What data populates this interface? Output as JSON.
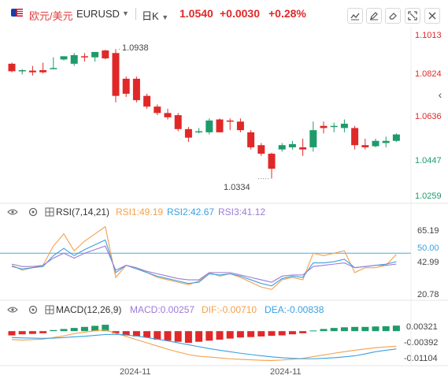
{
  "header": {
    "symbol_cn": "欧元/美元",
    "symbol_en": "EURUSD",
    "period": "日K",
    "price": "1.0540",
    "change": "+0.0030",
    "change_pct": "+0.28%",
    "icons": [
      "line-tool-icon",
      "draw-icon",
      "erase-icon",
      "fullscreen-icon",
      "close-icon"
    ]
  },
  "colors": {
    "up": "#e02828",
    "down": "#1e9b6a",
    "rsi1": "#f5a04a",
    "rsi2": "#3aa0e0",
    "rsi3": "#9b7bd6",
    "dif": "#f5a04a",
    "dea": "#3aa0e0"
  },
  "chart_data": [
    {
      "type": "candlestick",
      "ylim": [
        1.0259,
        1.1013
      ],
      "y_ticks": [
        "1.1013",
        "1.0824",
        "1.0636",
        "1.0447",
        "1.0259"
      ],
      "annotations": {
        "high": "1.0938",
        "low": "1.0334"
      },
      "candles": [
        [
          1.087,
          1.0875,
          1.0835,
          1.083
        ],
        [
          1.0838,
          1.0845,
          1.084,
          1.082
        ],
        [
          1.0838,
          1.086,
          1.083,
          1.0815
        ],
        [
          1.084,
          1.0875,
          1.083,
          1.0825
        ],
        [
          1.085,
          1.09,
          1.085,
          1.0845
        ],
        [
          1.089,
          1.0905,
          1.0905,
          1.0885
        ],
        [
          1.087,
          1.092,
          1.091,
          1.086
        ],
        [
          1.0905,
          1.092,
          1.09,
          1.088
        ],
        [
          1.09,
          1.092,
          1.0925,
          1.088
        ],
        [
          1.0932,
          1.0935,
          1.0895,
          1.089
        ],
        [
          1.092,
          1.0938,
          1.072,
          1.069
        ],
        [
          1.08,
          1.081,
          1.073,
          1.0715
        ],
        [
          1.08,
          1.081,
          1.07,
          1.069
        ],
        [
          1.072,
          1.073,
          1.067,
          1.066
        ],
        [
          1.067,
          1.068,
          1.064,
          1.063
        ],
        [
          1.064,
          1.066,
          1.062,
          1.061
        ],
        [
          1.063,
          1.064,
          1.0565,
          1.0555
        ],
        [
          1.0565,
          1.0575,
          1.0525,
          1.0505
        ],
        [
          1.055,
          1.057,
          1.0555,
          1.0545
        ],
        [
          1.055,
          1.0615,
          1.0605,
          1.054
        ],
        [
          1.061,
          1.0615,
          1.055,
          1.055
        ],
        [
          1.0605,
          1.0615,
          1.06,
          1.056
        ],
        [
          1.06,
          1.0615,
          1.056,
          1.055
        ],
        [
          1.055,
          1.056,
          1.048,
          1.047
        ],
        [
          1.049,
          1.05,
          1.045,
          1.044
        ],
        [
          1.045,
          1.0455,
          1.038,
          1.0334
        ],
        [
          1.047,
          1.05,
          1.049,
          1.046
        ],
        [
          1.048,
          1.051,
          1.0495,
          1.047
        ],
        [
          1.048,
          1.052,
          1.047,
          1.044
        ],
        [
          1.048,
          1.06,
          1.056,
          1.046
        ],
        [
          1.058,
          1.06,
          1.057,
          1.0545
        ],
        [
          1.0575,
          1.0595,
          1.058,
          1.055
        ],
        [
          1.057,
          1.061,
          1.059,
          1.055
        ],
        [
          1.057,
          1.058,
          1.049,
          1.047
        ],
        [
          1.049,
          1.052,
          1.048,
          1.047
        ],
        [
          1.0485,
          1.052,
          1.051,
          1.048
        ],
        [
          1.05,
          1.053,
          1.051,
          1.048
        ],
        [
          1.051,
          1.0545,
          1.054,
          1.0505
        ]
      ],
      "x_labels": [
        "2024-11",
        "2024-11"
      ]
    },
    {
      "type": "line",
      "title": "RSI(7,14,21)",
      "legend": {
        "rsi1": "RSI1:49.19",
        "rsi2": "RSI2:42.67",
        "rsi3": "RSI3:41.12"
      },
      "ylim": [
        15,
        75
      ],
      "y_ticks": [
        "65.19",
        "50.00",
        "42.99",
        "20.78"
      ],
      "series": [
        {
          "name": "RSI1",
          "values": [
            40,
            36,
            38,
            40,
            56,
            66,
            52,
            60,
            66,
            72,
            30,
            40,
            38,
            34,
            30,
            28,
            26,
            24,
            27,
            34,
            31,
            33,
            30,
            26,
            22,
            20,
            28,
            30,
            28,
            50,
            48,
            50,
            52,
            34,
            38,
            38,
            40,
            49
          ]
        },
        {
          "name": "RSI2",
          "values": [
            39,
            37,
            38,
            39,
            48,
            54,
            48,
            53,
            57,
            61,
            34,
            40,
            37,
            34,
            31,
            29,
            27,
            25,
            26,
            33,
            32,
            33,
            31,
            28,
            25,
            23,
            29,
            31,
            30,
            42,
            42,
            43,
            45,
            38,
            39,
            40,
            41,
            43
          ]
        },
        {
          "name": "RSI3",
          "values": [
            41,
            39,
            39,
            40,
            46,
            50,
            46,
            50,
            53,
            56,
            36,
            40,
            38,
            35,
            33,
            31,
            29,
            28,
            28,
            34,
            34,
            34,
            32,
            30,
            28,
            26,
            31,
            32,
            32,
            39,
            40,
            41,
            42,
            38,
            39,
            40,
            40,
            41
          ]
        }
      ]
    },
    {
      "type": "bar+line",
      "title": "MACD(12,26,9)",
      "legend": {
        "macd": "MACD:0.00257",
        "dif": "DIF:-0.00710",
        "dea": "DEA:-0.00838"
      },
      "ylim": [
        -0.0155,
        0.006
      ],
      "y_ticks": [
        "0.00321",
        "-0.00392",
        "-0.01104"
      ],
      "histogram": [
        -0.002,
        -0.0015,
        -0.0013,
        -0.001,
        0.0005,
        0.001,
        0.0015,
        0.002,
        0.0025,
        0.003,
        -0.001,
        -0.002,
        -0.0025,
        -0.003,
        -0.004,
        -0.0045,
        -0.005,
        -0.0055,
        -0.005,
        -0.0045,
        -0.004,
        -0.0035,
        -0.003,
        -0.0028,
        -0.0025,
        -0.0022,
        -0.002,
        -0.0015,
        -0.001,
        0.0003,
        0.001,
        0.0015,
        0.0018,
        0.002,
        0.002,
        0.0022,
        0.0023,
        0.0026
      ],
      "dif": [
        -0.004,
        -0.0042,
        -0.004,
        -0.0038,
        -0.003,
        -0.0022,
        -0.0012,
        -0.0005,
        0.0002,
        0.0005,
        -0.001,
        -0.0025,
        -0.004,
        -0.0055,
        -0.007,
        -0.0085,
        -0.0098,
        -0.011,
        -0.0118,
        -0.0122,
        -0.0126,
        -0.013,
        -0.0133,
        -0.0135,
        -0.0137,
        -0.0138,
        -0.0136,
        -0.0132,
        -0.0128,
        -0.012,
        -0.0112,
        -0.0104,
        -0.0097,
        -0.009,
        -0.0084,
        -0.0078,
        -0.0074,
        -0.0071
      ],
      "dea": [
        -0.003,
        -0.0032,
        -0.0033,
        -0.0034,
        -0.0033,
        -0.003,
        -0.0027,
        -0.0024,
        -0.002,
        -0.0016,
        -0.0015,
        -0.0018,
        -0.0023,
        -0.003,
        -0.0038,
        -0.0046,
        -0.0055,
        -0.0064,
        -0.0073,
        -0.0082,
        -0.009,
        -0.0097,
        -0.0104,
        -0.011,
        -0.0116,
        -0.0121,
        -0.0125,
        -0.0128,
        -0.013,
        -0.013,
        -0.0128,
        -0.0125,
        -0.0121,
        -0.0116,
        -0.0107,
        -0.0097,
        -0.009,
        -0.0084
      ]
    }
  ]
}
